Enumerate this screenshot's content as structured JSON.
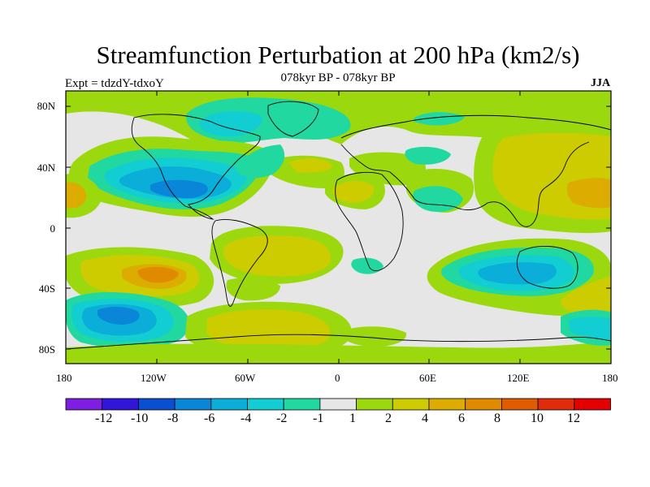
{
  "title": "Streamfunction Perturbation at 200 hPa (km2/s)",
  "subtitle": "078kyr BP - 078kyr BP",
  "left_label": "Expt = tdzdY-tdxoY",
  "right_label": "JJA",
  "lat_ticks": [
    "80N",
    "40N",
    "0",
    "40S",
    "80S"
  ],
  "lon_ticks": [
    "180",
    "120W",
    "60W",
    "0",
    "60E",
    "120E",
    "180"
  ],
  "colorbar": {
    "labels": [
      "-12",
      "-10",
      "-8",
      "-6",
      "-4",
      "-2",
      "-1",
      "1",
      "2",
      "4",
      "6",
      "8",
      "10",
      "12"
    ],
    "colors": [
      "#7d1ee0",
      "#3216d8",
      "#0a4ed2",
      "#0a86d8",
      "#0aaed8",
      "#12cdd2",
      "#20d8a0",
      "#e6e6e6",
      "#9cd80e",
      "#cccc00",
      "#dcac00",
      "#e08a00",
      "#e05c00",
      "#e02c0a",
      "#e40000"
    ]
  },
  "colors": {
    "neutral": "#e6e6e6",
    "blue_strong": "#0a86d8",
    "blue": "#0aaed8",
    "cyan": "#12cdd2",
    "teal": "#20d8a0",
    "green": "#9cd80e",
    "yellow": "#cccc00",
    "orange": "#dcac00",
    "dark_orange": "#e08a00"
  }
}
